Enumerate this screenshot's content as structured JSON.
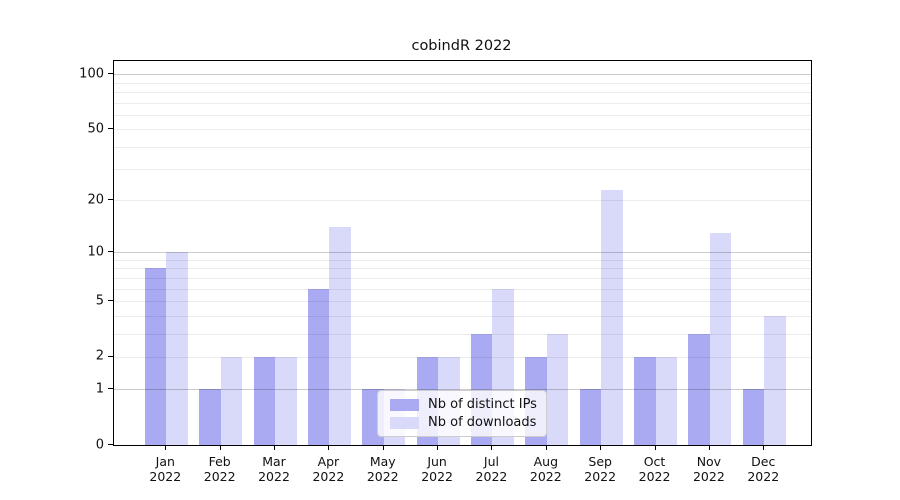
{
  "title": "cobindR 2022",
  "chart_data": {
    "type": "bar",
    "title": "cobindR 2022",
    "categories": [
      "Jan",
      "Feb",
      "Mar",
      "Apr",
      "May",
      "Jun",
      "Jul",
      "Aug",
      "Sep",
      "Oct",
      "Nov",
      "Dec"
    ],
    "category_year": "2022",
    "series": [
      {
        "name": "Nb of distinct IPs",
        "color": "#aaaaf2",
        "values": [
          8,
          1,
          2,
          6,
          1,
          2,
          3,
          2,
          1,
          2,
          3,
          1
        ]
      },
      {
        "name": "Nb of downloads",
        "color": "#d9d9fa",
        "values": [
          10,
          2,
          2,
          14,
          1,
          2,
          6,
          3,
          23,
          2,
          13,
          4
        ]
      }
    ],
    "xlabel": "",
    "ylabel": "",
    "yscale": "log1p",
    "ytick_labels": [
      "0",
      "1",
      "2",
      "5",
      "10",
      "20",
      "50",
      "100"
    ],
    "ytick_values": [
      0,
      1,
      2,
      5,
      10,
      20,
      50,
      100
    ],
    "major_grid_values": [
      1,
      10,
      100
    ],
    "minor_grid_values": [
      2,
      3,
      4,
      5,
      6,
      7,
      8,
      9,
      20,
      30,
      40,
      50,
      60,
      70,
      80,
      90
    ],
    "ylim": [
      0,
      118
    ],
    "grid": true,
    "legend": {
      "position": "lower-center-left",
      "entries": [
        "Nb of distinct IPs",
        "Nb of downloads"
      ]
    }
  },
  "colors": {
    "bar_distinct_ips": "#aaaaf2",
    "bar_downloads": "#d9d9fa",
    "spine": "#000000",
    "background": "#ffffff",
    "legend_border": "#cccccc"
  }
}
